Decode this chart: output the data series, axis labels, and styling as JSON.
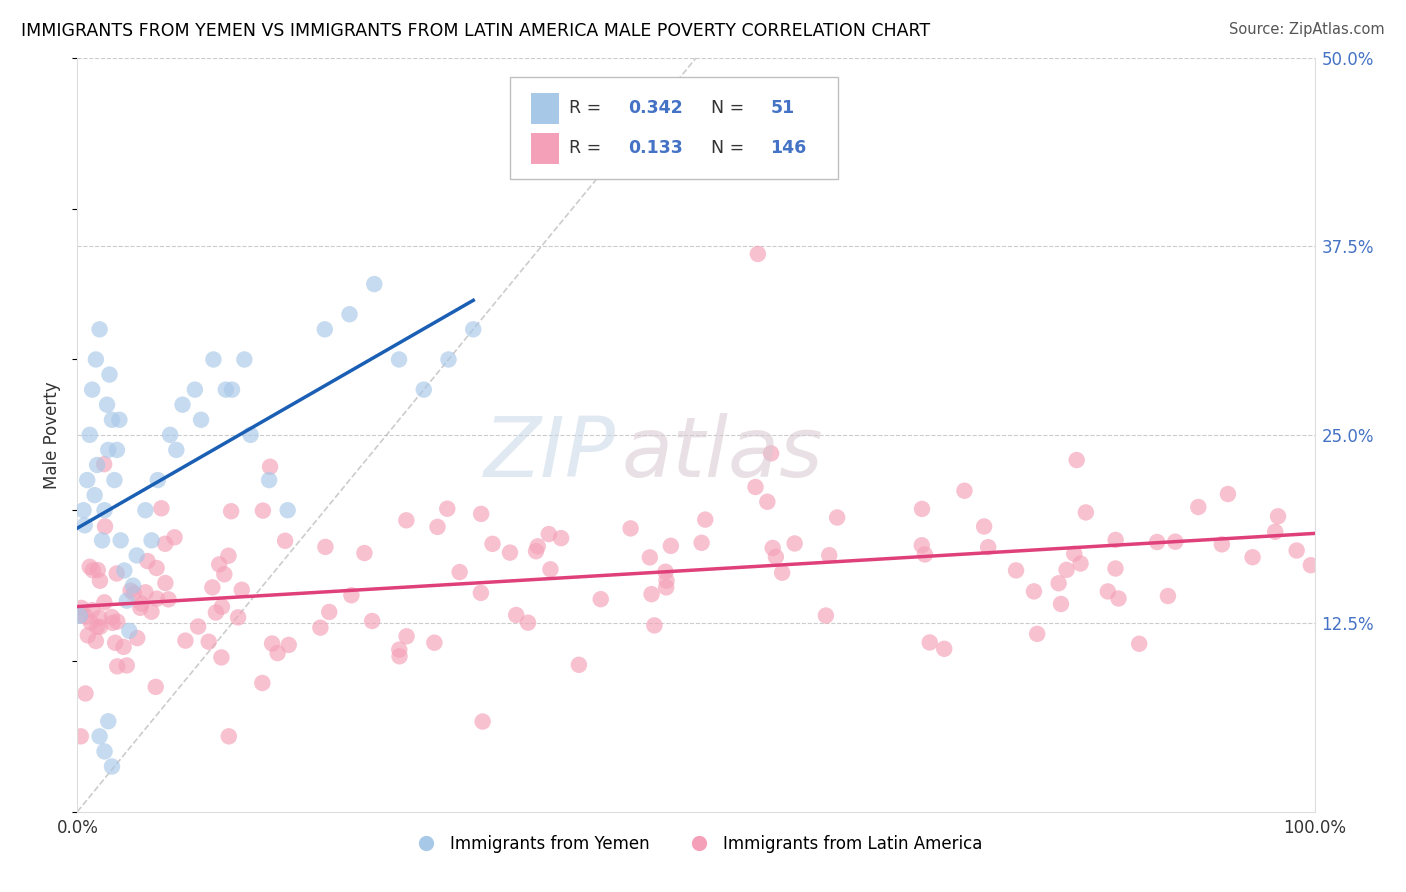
{
  "title": "IMMIGRANTS FROM YEMEN VS IMMIGRANTS FROM LATIN AMERICA MALE POVERTY CORRELATION CHART",
  "source": "Source: ZipAtlas.com",
  "ylabel": "Male Poverty",
  "xlim": [
    0,
    1.0
  ],
  "ylim": [
    0,
    0.5
  ],
  "color_blue": "#a8c8e8",
  "color_pink": "#f4a0b8",
  "color_blue_line": "#1a5fb4",
  "color_pink_line": "#e0407a",
  "color_diag": "#aaaaaa",
  "watermark_zip": "ZIP",
  "watermark_atlas": "atlas",
  "ytick_color": "#4472c4"
}
